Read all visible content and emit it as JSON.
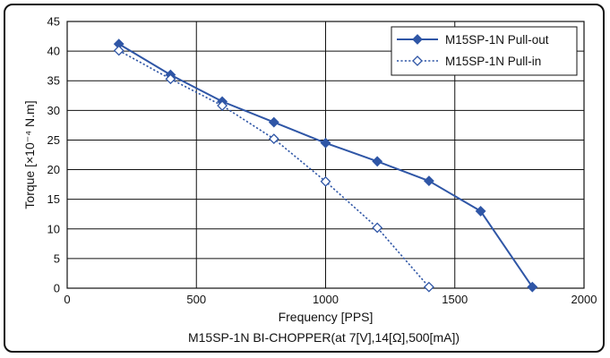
{
  "chart_data": {
    "type": "line",
    "title": "",
    "xlabel": "Frequency [PPS]",
    "ylabel": "Torque [×10⁻⁴ N.m]",
    "caption": "M15SP-1N BI-CHOPPER(at 7[V],14[Ω],500[mA])",
    "xlim": [
      0,
      2000
    ],
    "ylim": [
      0,
      45
    ],
    "xticks": [
      0,
      500,
      1000,
      1500,
      2000
    ],
    "yticks": [
      0,
      5,
      10,
      15,
      20,
      25,
      30,
      35,
      40,
      45
    ],
    "xtick_labels": [
      "0",
      "500",
      "1000",
      "1500",
      "2000"
    ],
    "ytick_labels": [
      "0",
      "5",
      "10",
      "15",
      "20",
      "25",
      "30",
      "35",
      "40",
      "45"
    ],
    "grid": true,
    "legend_position": "top-right",
    "series": [
      {
        "name": "M15SP-1N Pull-out",
        "style": "solid",
        "marker": "filled-diamond",
        "color": "#2f56a6",
        "points": [
          [
            200,
            41.2
          ],
          [
            400,
            36.0
          ],
          [
            600,
            31.5
          ],
          [
            800,
            28.0
          ],
          [
            1000,
            24.5
          ],
          [
            1200,
            21.4
          ],
          [
            1400,
            18.1
          ],
          [
            1600,
            13.0
          ],
          [
            1800,
            0.2
          ]
        ]
      },
      {
        "name": "M15SP-1N Pull-in",
        "style": "dotted",
        "marker": "open-diamond",
        "color": "#2f56a6",
        "points": [
          [
            200,
            40.1
          ],
          [
            400,
            35.3
          ],
          [
            600,
            30.8
          ],
          [
            800,
            25.2
          ],
          [
            1000,
            18.0
          ],
          [
            1200,
            10.2
          ],
          [
            1400,
            0.2
          ]
        ]
      }
    ]
  }
}
